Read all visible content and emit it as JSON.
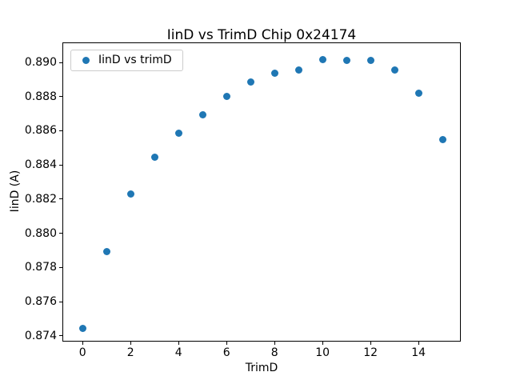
{
  "figure": {
    "background": "#ffffff"
  },
  "chart_data": {
    "type": "scatter",
    "title": "IinD vs TrimD Chip 0x24174",
    "xlabel": "TrimD",
    "ylabel": "IinD (A)",
    "legend": {
      "label": "IinD vs trimD",
      "location": "upper left"
    },
    "x": [
      0,
      1,
      2,
      3,
      4,
      5,
      6,
      7,
      8,
      9,
      10,
      11,
      12,
      13,
      14,
      15
    ],
    "values": [
      0.87445,
      0.87895,
      0.8823,
      0.88445,
      0.88585,
      0.88695,
      0.888,
      0.88885,
      0.88935,
      0.88955,
      0.89017,
      0.89013,
      0.8901,
      0.88955,
      0.8882,
      0.8855
    ],
    "xlim": [
      -0.84,
      15.76
    ],
    "ylim": [
      0.87367,
      0.89117
    ],
    "xticks": [
      "0",
      "2",
      "4",
      "6",
      "8",
      "10",
      "12",
      "14"
    ],
    "yticks": [
      "0.874",
      "0.876",
      "0.878",
      "0.880",
      "0.882",
      "0.884",
      "0.886",
      "0.888",
      "0.890"
    ],
    "grid": false,
    "legend_visible": true,
    "marker_color": "#1f77b4",
    "axis_color": "#000000"
  }
}
